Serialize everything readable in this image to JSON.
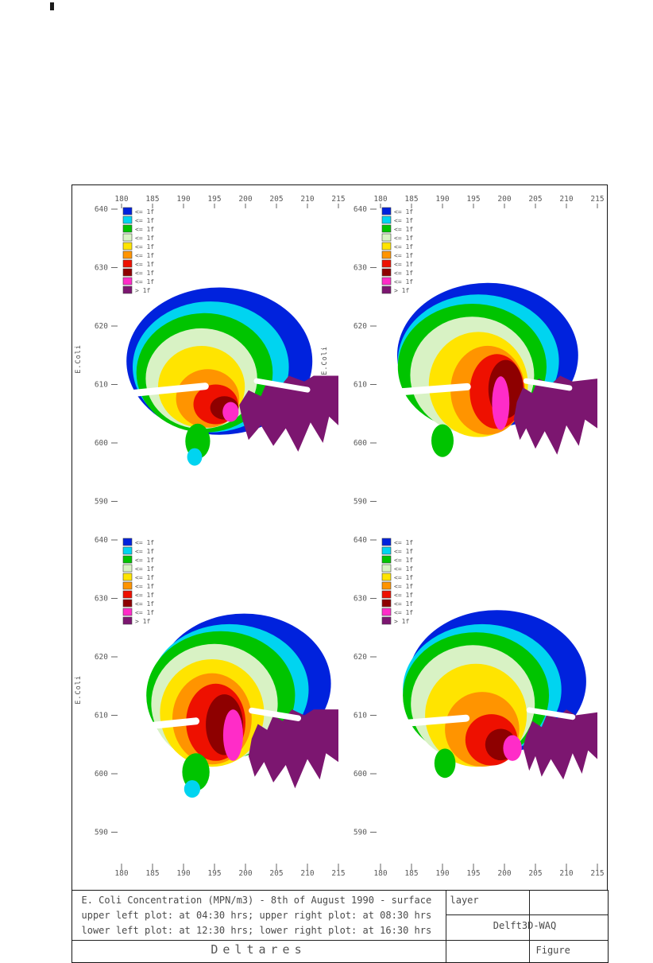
{
  "ylabel": "E.Coli",
  "axis": {
    "x_ticks": [
      "180",
      "185",
      "190",
      "195",
      "200",
      "205",
      "210",
      "215"
    ],
    "y_ticks": [
      "640",
      "630",
      "620",
      "610",
      "600",
      "590"
    ]
  },
  "legend": {
    "labels": [
      "<= 1f",
      "<= 1f",
      "<= 1f",
      "<= 1f",
      "<= 1f",
      "<= 1f",
      "<= 1f",
      "<= 1f",
      "<= 1f",
      "> 1f"
    ]
  },
  "palette": [
    "#0022dd",
    "#00d4f0",
    "#00c400",
    "#d8f2c4",
    "#ffe400",
    "#ff9400",
    "#ee1000",
    "#8e0000",
    "#ff2cc8",
    "#7c1670"
  ],
  "title_block": {
    "line1": "E. Coli Concentration (MPN/m3) - 8th of August 1990 - surface",
    "line1_overflow": "layer",
    "line2": "upper left plot: at 04:30 hrs; upper right plot: at 08:30 hrs",
    "line3": "lower left plot: at 12:30 hrs; lower right plot: at 16:30 hrs",
    "model": "Delft3D-WAQ",
    "company": "Deltares",
    "figure_label": "Figure"
  },
  "chart_data": {
    "type": "heatmap",
    "subtype": "filled contour map, 2x2 subplots",
    "title": "E. Coli Concentration (MPN/m3) - 8th of August 1990 - surface layer",
    "variable": "E.Coli",
    "units": "MPN/m3",
    "x_range": [
      180,
      215
    ],
    "y_range": [
      590,
      640
    ],
    "x_ticks": [
      180,
      185,
      190,
      195,
      200,
      205,
      210,
      215
    ],
    "y_ticks": [
      640,
      630,
      620,
      610,
      600,
      590
    ],
    "subplots": [
      {
        "position": "upper-left",
        "time": "04:30 hrs"
      },
      {
        "position": "upper-right",
        "time": "08:30 hrs"
      },
      {
        "position": "lower-left",
        "time": "12:30 hrs"
      },
      {
        "position": "lower-right",
        "time": "16:30 hrs"
      }
    ],
    "legend": {
      "labels": [
        "<= 1f",
        "<= 1f",
        "<= 1f",
        "<= 1f",
        "<= 1f",
        "<= 1f",
        "<= 1f",
        "<= 1f",
        "<= 1f",
        "> 1f"
      ],
      "colors": [
        "#0022dd",
        "#00d4f0",
        "#00c400",
        "#d8f2c4",
        "#ffe400",
        "#ff9400",
        "#ee1000",
        "#8e0000",
        "#ff2cc8",
        "#7c1670"
      ],
      "position": "upper-left of each subplot"
    },
    "model": "Delft3D-WAQ",
    "organization": "Deltares"
  }
}
